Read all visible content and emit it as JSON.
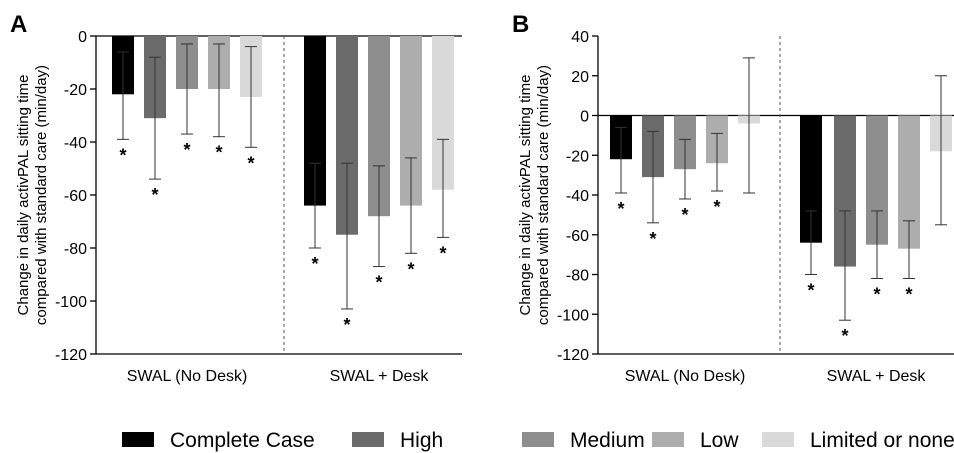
{
  "panel_labels": [
    "A",
    "B"
  ],
  "legend": {
    "items": [
      {
        "label": "Complete Case",
        "color": "#000000"
      },
      {
        "label": "High",
        "color": "#6b6b6b"
      },
      {
        "label": "Medium",
        "color": "#8e8e8e"
      },
      {
        "label": "Low",
        "color": "#adadad"
      },
      {
        "label": "Limited or none",
        "color": "#d9d9d9"
      }
    ]
  },
  "chart_data": [
    {
      "type": "bar",
      "panel": "A",
      "ylabel": "Change in daily activPAL sitting time compared with standard care  (min/day)",
      "ylabel_lines": [
        "Change in daily activPAL sitting time",
        "compared with standard care  (min/day)"
      ],
      "ylim": [
        -120,
        0
      ],
      "yticks": [
        0,
        -20,
        -40,
        -60,
        -80,
        -100,
        -120
      ],
      "categories": [
        "SWAL (No Desk)",
        "SWAL + Desk"
      ],
      "grid": false,
      "legend_position": "bottom",
      "series": [
        {
          "name": "Complete Case",
          "values": [
            -22,
            -64
          ],
          "ci_low": [
            -39,
            -80
          ],
          "ci_high": [
            -6,
            -48
          ],
          "sig": [
            true,
            true
          ]
        },
        {
          "name": "High",
          "values": [
            -31,
            -75
          ],
          "ci_low": [
            -54,
            -103
          ],
          "ci_high": [
            -8,
            -48
          ],
          "sig": [
            true,
            true
          ]
        },
        {
          "name": "Medium",
          "values": [
            -20,
            -68
          ],
          "ci_low": [
            -37,
            -87
          ],
          "ci_high": [
            -3,
            -49
          ],
          "sig": [
            true,
            true
          ]
        },
        {
          "name": "Low",
          "values": [
            -20,
            -64
          ],
          "ci_low": [
            -38,
            -82
          ],
          "ci_high": [
            -3,
            -46
          ],
          "sig": [
            true,
            true
          ]
        },
        {
          "name": "Limited or none",
          "values": [
            -23,
            -58
          ],
          "ci_low": [
            -42,
            -76
          ],
          "ci_high": [
            -4,
            -39
          ],
          "sig": [
            true,
            true
          ]
        }
      ],
      "significance_marker": "*"
    },
    {
      "type": "bar",
      "panel": "B",
      "ylabel": "Change in daily activPAL sitting time compared with standard care  (min/day)",
      "ylabel_lines": [
        "Change in daily activPAL sitting time",
        "compared with standard care  (min/day)"
      ],
      "ylim": [
        -120,
        40
      ],
      "yticks": [
        40,
        20,
        0,
        -20,
        -40,
        -60,
        -80,
        -100,
        -120
      ],
      "categories": [
        "SWAL (No Desk)",
        "SWAL + Desk"
      ],
      "grid": false,
      "legend_position": "bottom",
      "series": [
        {
          "name": "Complete Case",
          "values": [
            -22,
            -64
          ],
          "ci_low": [
            -39,
            -80
          ],
          "ci_high": [
            -6,
            -48
          ],
          "sig": [
            true,
            true
          ]
        },
        {
          "name": "High",
          "values": [
            -31,
            -76
          ],
          "ci_low": [
            -54,
            -103
          ],
          "ci_high": [
            -8,
            -48
          ],
          "sig": [
            true,
            true
          ]
        },
        {
          "name": "Medium",
          "values": [
            -27,
            -65
          ],
          "ci_low": [
            -42,
            -82
          ],
          "ci_high": [
            -12,
            -48
          ],
          "sig": [
            true,
            true
          ]
        },
        {
          "name": "Low",
          "values": [
            -24,
            -67
          ],
          "ci_low": [
            -38,
            -82
          ],
          "ci_high": [
            -9,
            -53
          ],
          "sig": [
            true,
            true
          ]
        },
        {
          "name": "Limited or none",
          "values": [
            -4,
            -18
          ],
          "ci_low": [
            -39,
            -55
          ],
          "ci_high": [
            29,
            20
          ],
          "sig": [
            false,
            false
          ]
        }
      ],
      "significance_marker": "*"
    }
  ]
}
